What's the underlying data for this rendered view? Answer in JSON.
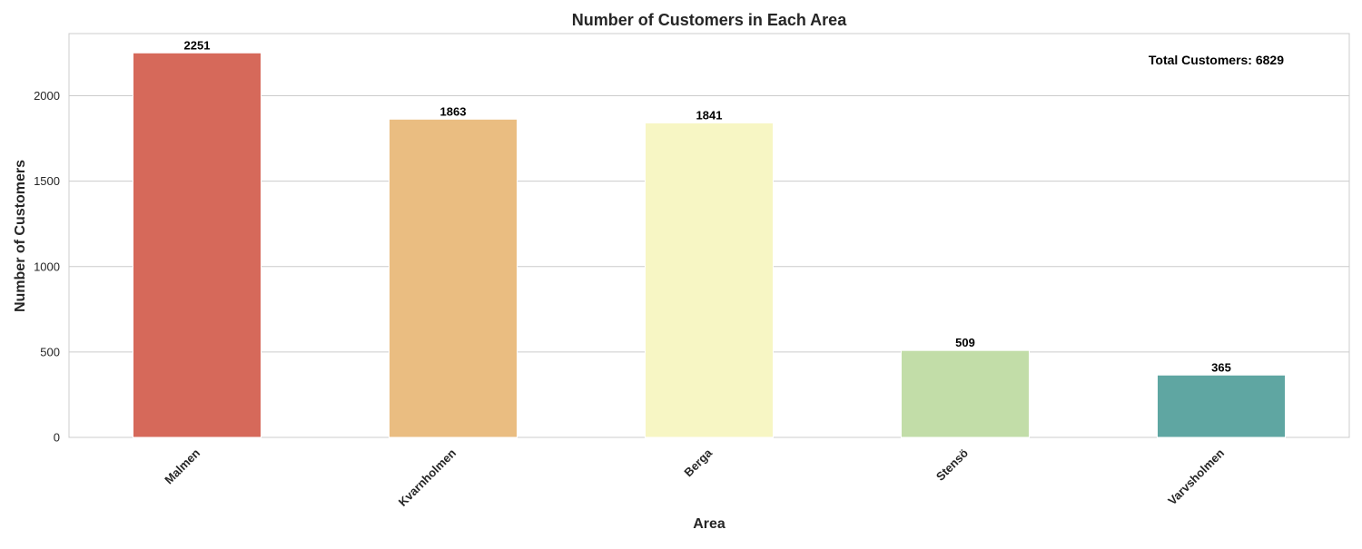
{
  "chart_data": {
    "type": "bar",
    "title": "Number of Customers in Each Area",
    "xlabel": "Area",
    "ylabel": "Number of Customers",
    "categories": [
      "Malmen",
      "Kvarnholmen",
      "Berga",
      "Stensö",
      "Varvsholmen"
    ],
    "values": [
      2251,
      1863,
      1841,
      509,
      365
    ],
    "value_labels": [
      "2251",
      "1863",
      "1841",
      "509",
      "365"
    ],
    "colors": [
      "#d6695a",
      "#eabd81",
      "#f7f6c4",
      "#c2dda8",
      "#5fa6a2"
    ],
    "ylim": [
      0,
      2364
    ],
    "yticks": [
      0,
      500,
      1000,
      1500,
      2000
    ],
    "ytick_labels": [
      "0",
      "500",
      "1000",
      "1500",
      "2000"
    ],
    "grid": "horizontal",
    "annotation": "Total Customers: 6829"
  }
}
